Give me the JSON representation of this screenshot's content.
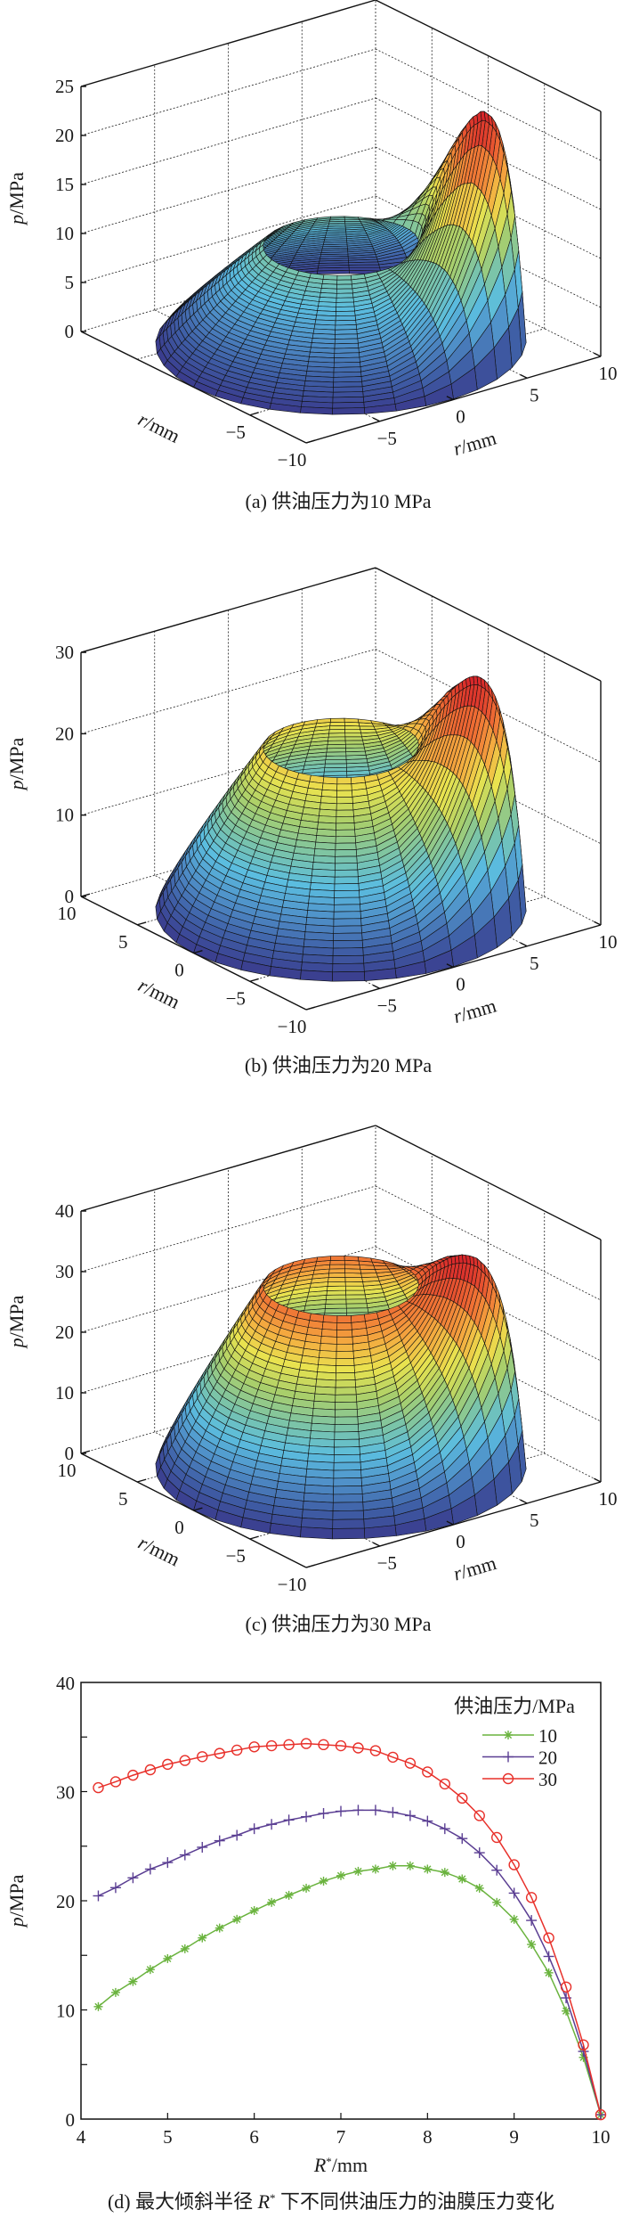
{
  "figures": [
    {
      "caption": "(a) 供油压力为10 MPa",
      "supply_pressure_MPa": 10,
      "z_axis": {
        "var": "p",
        "unit": "/MPa",
        "ticks": [
          "0",
          "5",
          "10",
          "15",
          "20",
          "25"
        ],
        "max": 25
      },
      "axis1": {
        "var": "r",
        "unit": "/mm",
        "ticks": [
          "−5",
          "−10"
        ]
      },
      "axis2": {
        "var": "r",
        "unit": "/mm",
        "ticks": [
          "−5",
          "0",
          "5",
          "10"
        ]
      }
    },
    {
      "caption": "(b) 供油压力为20 MPa",
      "supply_pressure_MPa": 20,
      "z_axis": {
        "var": "p",
        "unit": "/MPa",
        "ticks": [
          "0",
          "10",
          "20",
          "30"
        ],
        "max": 30
      },
      "axis1": {
        "var": "r",
        "unit": "/mm",
        "ticks": [
          "10",
          "5",
          "0",
          "−5",
          "−10"
        ]
      },
      "axis2": {
        "var": "r",
        "unit": "/mm",
        "ticks": [
          "−5",
          "0",
          "5",
          "10"
        ]
      }
    },
    {
      "caption": "(c) 供油压力为30 MPa",
      "supply_pressure_MPa": 30,
      "z_axis": {
        "var": "p",
        "unit": "/MPa",
        "ticks": [
          "0",
          "10",
          "20",
          "30",
          "40"
        ],
        "max": 40
      },
      "axis1": {
        "var": "r",
        "unit": "/mm",
        "ticks": [
          "10",
          "5",
          "0",
          "−5",
          "−10"
        ]
      },
      "axis2": {
        "var": "r",
        "unit": "/mm",
        "ticks": [
          "−5",
          "0",
          "5",
          "10"
        ]
      }
    }
  ],
  "colormap": [
    "#3a3a8c",
    "#3f5fa6",
    "#4f8fc8",
    "#5bbddf",
    "#7cc4a6",
    "#a9cf6b",
    "#e9e34f",
    "#f4a93f",
    "#ee6a33",
    "#d8262a"
  ],
  "chart_data": {
    "type": "line",
    "caption_prefix": "(d) 最大倾斜半径 ",
    "caption_var": "R",
    "caption_sup": "*",
    "caption_suffix": " 下不同供油压力的油膜压力变化",
    "xlabel_var": "R",
    "xlabel_sup": "*",
    "xlabel_unit": "/mm",
    "ylabel_var": "p",
    "ylabel_unit": "/MPa",
    "xlim": [
      4,
      10
    ],
    "ylim": [
      0,
      40
    ],
    "xticks": [
      "4",
      "5",
      "6",
      "7",
      "8",
      "9",
      "10"
    ],
    "yticks": [
      "0",
      "10",
      "20",
      "30",
      "40"
    ],
    "grid": false,
    "legend_title": "供油压力/MPa",
    "legend_placement": "top-right",
    "x": [
      4.2,
      4.4,
      4.6,
      4.8,
      5.0,
      5.2,
      5.4,
      5.6,
      5.8,
      6.0,
      6.2,
      6.4,
      6.6,
      6.8,
      7.0,
      7.2,
      7.4,
      7.6,
      7.8,
      8.0,
      8.2,
      8.4,
      8.6,
      8.8,
      9.0,
      9.2,
      9.4,
      9.6,
      9.8,
      10.0
    ],
    "series": [
      {
        "name": "10",
        "color": "#6ab33e",
        "marker": "asterisk",
        "values": [
          10.3,
          11.6,
          12.6,
          13.7,
          14.7,
          15.6,
          16.6,
          17.5,
          18.3,
          19.1,
          19.85,
          20.5,
          21.15,
          21.8,
          22.3,
          22.7,
          22.9,
          23.2,
          23.2,
          22.9,
          22.6,
          22.0,
          21.15,
          19.85,
          18.3,
          16.0,
          13.4,
          9.9,
          5.65,
          0.4
        ]
      },
      {
        "name": "20",
        "color": "#5b3f93",
        "marker": "plus",
        "values": [
          20.45,
          21.2,
          22.1,
          22.9,
          23.5,
          24.2,
          24.9,
          25.5,
          26.0,
          26.6,
          27.0,
          27.4,
          27.7,
          28.0,
          28.2,
          28.3,
          28.3,
          28.1,
          27.8,
          27.3,
          26.6,
          25.7,
          24.4,
          22.8,
          20.7,
          18.2,
          14.9,
          11.1,
          6.2,
          0.4
        ]
      },
      {
        "name": "30",
        "color": "#e8302a",
        "marker": "circle",
        "values": [
          30.36,
          30.9,
          31.5,
          32.0,
          32.5,
          32.85,
          33.2,
          33.5,
          33.8,
          34.1,
          34.2,
          34.3,
          34.4,
          34.3,
          34.2,
          34.0,
          33.75,
          33.15,
          32.6,
          31.8,
          30.7,
          29.4,
          27.8,
          25.8,
          23.3,
          20.3,
          16.6,
          12.1,
          6.8,
          0.4
        ]
      }
    ]
  }
}
